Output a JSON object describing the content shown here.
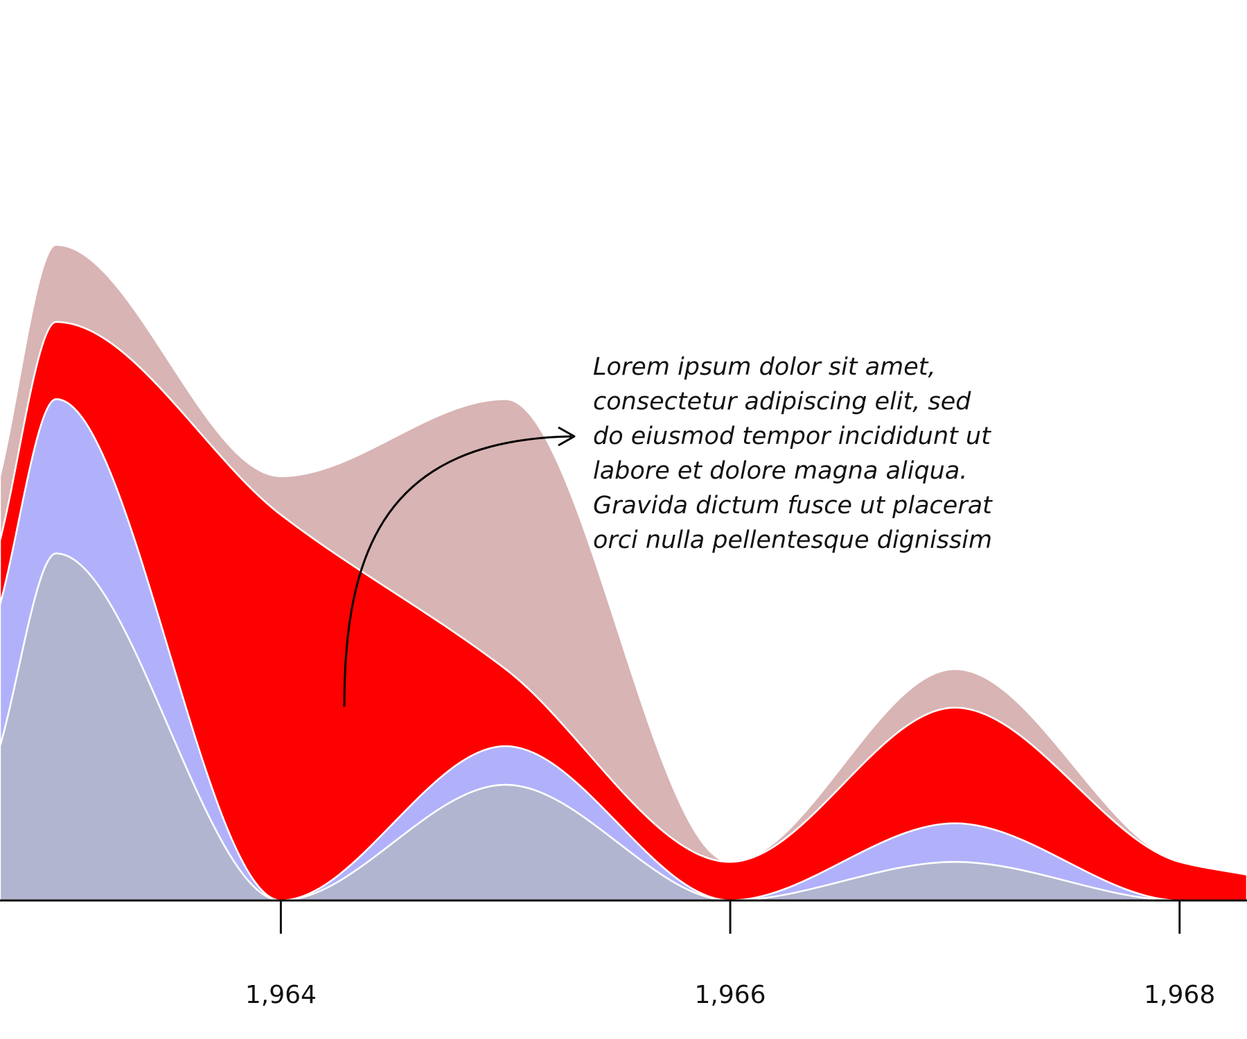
{
  "chart_data": {
    "type": "area",
    "stacked": true,
    "curve": "smooth",
    "x": [
      1962.75,
      1963,
      1964,
      1965,
      1966,
      1967,
      1968,
      1968.3
    ],
    "xlim": [
      1962.75,
      1968.3
    ],
    "x_ticks": [
      1964,
      1966,
      1968
    ],
    "x_tick_labels": [
      "1,964",
      "1,966",
      "1,968"
    ],
    "ylim": [
      0,
      13
    ],
    "y_axis_visible": false,
    "grid": false,
    "legend": "none",
    "series": [
      {
        "color": "#b1b5cf",
        "values": [
          3,
          6.75,
          0,
          2.25,
          0,
          0.75,
          0,
          0
        ]
      },
      {
        "color": "#b1b1fb",
        "values": [
          2.75,
          3,
          0,
          0.75,
          0,
          0.75,
          0,
          0
        ]
      },
      {
        "color": "#ff0000",
        "values": [
          1.25,
          1.5,
          7.5,
          1.5,
          0.75,
          2.25,
          0.75,
          0.5
        ]
      },
      {
        "color": "#d8b4b4",
        "values": [
          1.25,
          1.5,
          0.75,
          5.25,
          0,
          0.75,
          0,
          0
        ]
      }
    ],
    "annotation": {
      "lines": [
        "Lorem ipsum dolor sit amet,",
        "consectetur adipiscing elit, sed",
        "do eiusmod tempor incididunt ut",
        "labore et dolore magna aliqua.",
        "Gravida dictum fusce ut placerat",
        "orci nulla pellentesque dignissim"
      ]
    }
  }
}
